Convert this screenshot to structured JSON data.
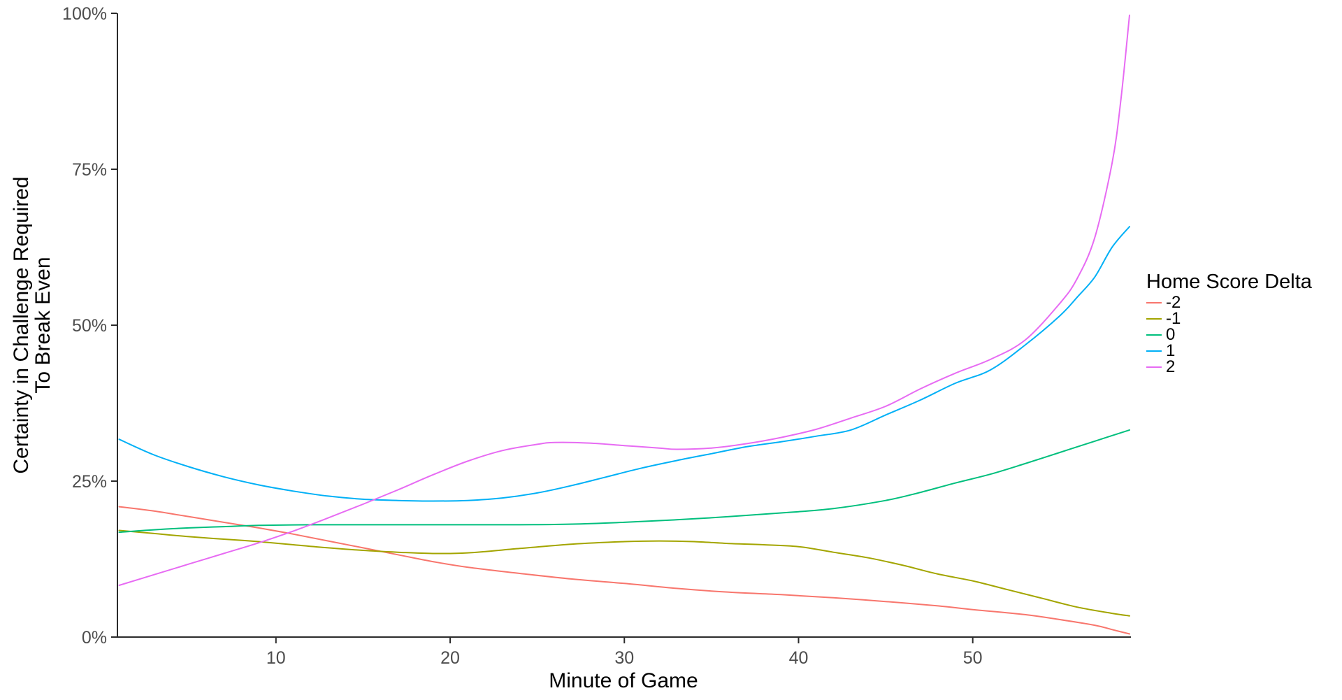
{
  "chart_data": {
    "type": "line",
    "title": "",
    "xlabel": "Minute of Game",
    "ylabel": "Certainty in Challenge Required To Break Even",
    "ylabel_line1": "Certainty in Challenge Required",
    "ylabel_line2": "To Break Even",
    "legend_title": "Home Score Delta",
    "legend_position": "right",
    "grid": false,
    "xlim": [
      0.9,
      59
    ],
    "ylim": [
      0,
      100
    ],
    "x_ticks": [
      10,
      20,
      30,
      40,
      50
    ],
    "y_ticks": [
      0,
      25,
      50,
      75,
      100
    ],
    "y_tick_suffix": "%",
    "axis_color": "#2b2b2b",
    "tick_label_color": "#4d4d4d",
    "series": [
      {
        "name": "-2",
        "color": "#F8766D",
        "points": [
          [
            1,
            20.9
          ],
          [
            3,
            20.2
          ],
          [
            5,
            19.3
          ],
          [
            7,
            18.4
          ],
          [
            9,
            17.5
          ],
          [
            11,
            16.5
          ],
          [
            13,
            15.4
          ],
          [
            15,
            14.3
          ],
          [
            17,
            13.2
          ],
          [
            19,
            12.1
          ],
          [
            21,
            11.2
          ],
          [
            24,
            10.2
          ],
          [
            27,
            9.3
          ],
          [
            30,
            8.6
          ],
          [
            33,
            7.8
          ],
          [
            36,
            7.2
          ],
          [
            39,
            6.8
          ],
          [
            42,
            6.3
          ],
          [
            45,
            5.7
          ],
          [
            48,
            5.0
          ],
          [
            50,
            4.4
          ],
          [
            53,
            3.6
          ],
          [
            55,
            2.8
          ],
          [
            57,
            1.9
          ],
          [
            58,
            1.2
          ],
          [
            59,
            0.5
          ]
        ]
      },
      {
        "name": "-1",
        "color": "#A3A500",
        "points": [
          [
            1,
            17.1
          ],
          [
            3,
            16.6
          ],
          [
            5,
            16.1
          ],
          [
            7,
            15.7
          ],
          [
            9,
            15.3
          ],
          [
            11,
            14.8
          ],
          [
            13,
            14.3
          ],
          [
            15,
            13.9
          ],
          [
            17,
            13.6
          ],
          [
            19,
            13.4
          ],
          [
            21,
            13.5
          ],
          [
            24,
            14.2
          ],
          [
            27,
            14.9
          ],
          [
            30,
            15.3
          ],
          [
            32,
            15.4
          ],
          [
            34,
            15.3
          ],
          [
            36,
            15.0
          ],
          [
            38,
            14.8
          ],
          [
            40,
            14.5
          ],
          [
            42,
            13.6
          ],
          [
            44,
            12.7
          ],
          [
            46,
            11.5
          ],
          [
            48,
            10.1
          ],
          [
            50,
            9.0
          ],
          [
            52,
            7.6
          ],
          [
            54,
            6.2
          ],
          [
            56,
            4.8
          ],
          [
            58,
            3.8
          ],
          [
            59,
            3.4
          ]
        ]
      },
      {
        "name": "0",
        "color": "#00BF7D",
        "points": [
          [
            1,
            16.8
          ],
          [
            3,
            17.2
          ],
          [
            5,
            17.5
          ],
          [
            7,
            17.7
          ],
          [
            9,
            17.9
          ],
          [
            12,
            18.0
          ],
          [
            15,
            18.0
          ],
          [
            18,
            18.0
          ],
          [
            21,
            18.0
          ],
          [
            24,
            18.0
          ],
          [
            27,
            18.1
          ],
          [
            30,
            18.4
          ],
          [
            33,
            18.8
          ],
          [
            36,
            19.3
          ],
          [
            39,
            19.9
          ],
          [
            42,
            20.6
          ],
          [
            45,
            21.9
          ],
          [
            47,
            23.2
          ],
          [
            49,
            24.7
          ],
          [
            51,
            26.1
          ],
          [
            53,
            27.8
          ],
          [
            55,
            29.6
          ],
          [
            57,
            31.4
          ],
          [
            59,
            33.2
          ]
        ]
      },
      {
        "name": "1",
        "color": "#00B0F6",
        "points": [
          [
            1,
            31.7
          ],
          [
            3,
            29.2
          ],
          [
            5,
            27.3
          ],
          [
            7,
            25.7
          ],
          [
            9,
            24.4
          ],
          [
            11,
            23.4
          ],
          [
            13,
            22.6
          ],
          [
            15,
            22.1
          ],
          [
            17,
            21.9
          ],
          [
            19,
            21.8
          ],
          [
            21,
            21.9
          ],
          [
            23,
            22.3
          ],
          [
            25,
            23.1
          ],
          [
            27,
            24.3
          ],
          [
            29,
            25.7
          ],
          [
            31,
            27.1
          ],
          [
            33,
            28.3
          ],
          [
            35,
            29.4
          ],
          [
            37,
            30.5
          ],
          [
            39,
            31.3
          ],
          [
            41,
            32.2
          ],
          [
            43,
            33.2
          ],
          [
            45,
            35.6
          ],
          [
            47,
            38.0
          ],
          [
            49,
            40.7
          ],
          [
            51,
            42.8
          ],
          [
            53,
            46.8
          ],
          [
            55,
            51.5
          ],
          [
            56,
            54.5
          ],
          [
            57,
            57.7
          ],
          [
            58,
            62.5
          ],
          [
            59,
            65.8
          ]
        ]
      },
      {
        "name": "2",
        "color": "#E76BF3",
        "points": [
          [
            1,
            8.3
          ],
          [
            3,
            10.0
          ],
          [
            5,
            11.7
          ],
          [
            7,
            13.4
          ],
          [
            9,
            15.1
          ],
          [
            11,
            17.0
          ],
          [
            13,
            19.1
          ],
          [
            15,
            21.3
          ],
          [
            17,
            23.6
          ],
          [
            19,
            26.0
          ],
          [
            21,
            28.2
          ],
          [
            23,
            29.9
          ],
          [
            25,
            30.9
          ],
          [
            26,
            31.2
          ],
          [
            28,
            31.1
          ],
          [
            30,
            30.7
          ],
          [
            32,
            30.3
          ],
          [
            33,
            30.1
          ],
          [
            35,
            30.3
          ],
          [
            37,
            31.0
          ],
          [
            39,
            32.0
          ],
          [
            41,
            33.3
          ],
          [
            43,
            35.1
          ],
          [
            45,
            37.0
          ],
          [
            47,
            39.8
          ],
          [
            49,
            42.3
          ],
          [
            51,
            44.5
          ],
          [
            53,
            47.6
          ],
          [
            55,
            53.5
          ],
          [
            56,
            57.5
          ],
          [
            57,
            64.0
          ],
          [
            58,
            76.0
          ],
          [
            58.5,
            86.0
          ],
          [
            59,
            99.7
          ]
        ]
      }
    ]
  }
}
